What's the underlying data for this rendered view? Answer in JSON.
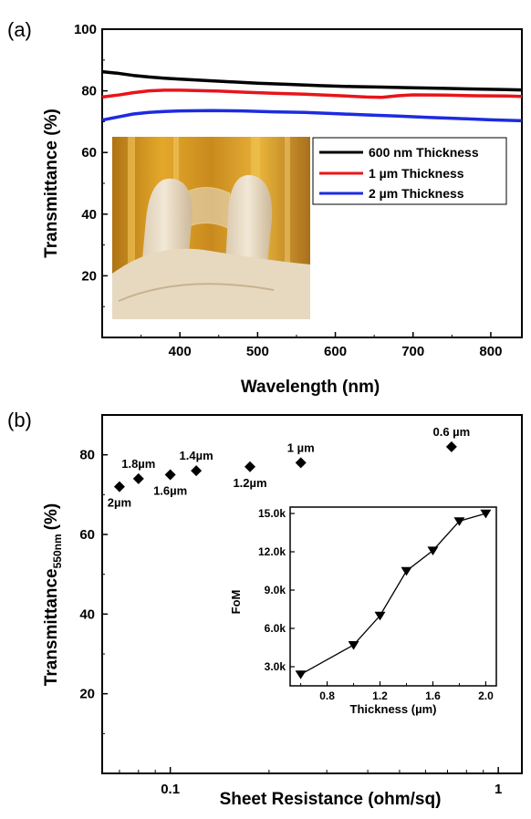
{
  "chart_data": [
    {
      "panel": "(a)",
      "type": "line",
      "xlabel": "Wavelength (nm)",
      "ylabel": "Transmittance (%)",
      "xlim": [
        300,
        840
      ],
      "ylim": [
        0,
        100
      ],
      "xticks": [
        "400",
        "500",
        "600",
        "700",
        "800"
      ],
      "yticks": [
        "20",
        "40",
        "60",
        "80",
        "100"
      ],
      "legend_position": "right, middle",
      "grid": false,
      "inset_photo": "photo of a transparent flexible film held between gloved fingers",
      "series": [
        {
          "name": "600 nm Thickness",
          "color": "#000000",
          "x": [
            300,
            320,
            340,
            360,
            380,
            400,
            430,
            460,
            500,
            540,
            580,
            620,
            660,
            700,
            740,
            780,
            820,
            840
          ],
          "y": [
            86.2,
            85.7,
            85.0,
            84.5,
            84.1,
            83.8,
            83.4,
            83.0,
            82.5,
            82.1,
            81.7,
            81.4,
            81.2,
            81.0,
            80.8,
            80.6,
            80.4,
            80.3
          ]
        },
        {
          "name": "1 µm Thickness",
          "color": "#e8141b",
          "x": [
            300,
            320,
            340,
            360,
            380,
            400,
            420,
            450,
            480,
            520,
            560,
            600,
            640,
            660,
            680,
            700,
            740,
            780,
            820,
            840
          ],
          "y": [
            78.0,
            78.6,
            79.4,
            80.0,
            80.2,
            80.2,
            80.1,
            79.9,
            79.6,
            79.2,
            78.9,
            78.5,
            78.0,
            77.9,
            78.4,
            78.7,
            78.6,
            78.4,
            78.3,
            78.2
          ]
        },
        {
          "name": "2 µm Thickness",
          "color": "#1d2be0",
          "x": [
            300,
            320,
            340,
            360,
            380,
            400,
            440,
            480,
            520,
            560,
            600,
            640,
            680,
            720,
            760,
            800,
            840
          ],
          "y": [
            70.5,
            71.5,
            72.5,
            73.0,
            73.3,
            73.5,
            73.6,
            73.5,
            73.2,
            73.0,
            72.6,
            72.2,
            71.8,
            71.4,
            71.0,
            70.6,
            70.3
          ]
        }
      ]
    },
    {
      "panel": "(b)",
      "type": "scatter",
      "xlabel": "Sheet Resistance (ohm/sq)",
      "ylabel_main": "Transmittance",
      "ylabel_sub": "550nm",
      "ylabel_unit": "(%)",
      "x_scale": "log",
      "xlim": [
        0.062,
        1.18
      ],
      "ylim": [
        0,
        90
      ],
      "xticks": [
        "0.1",
        "1"
      ],
      "yticks": [
        "20",
        "40",
        "60",
        "80"
      ],
      "grid": false,
      "points": [
        {
          "x": 0.07,
          "y": 72,
          "label": "2µm",
          "label_pos": "below"
        },
        {
          "x": 0.08,
          "y": 74,
          "label": "1.8µm",
          "label_pos": "above"
        },
        {
          "x": 0.1,
          "y": 75,
          "label": "1.6µm",
          "label_pos": "below"
        },
        {
          "x": 0.12,
          "y": 76,
          "label": "1.4µm",
          "label_pos": "above"
        },
        {
          "x": 0.175,
          "y": 77,
          "label": "1.2µm",
          "label_pos": "below"
        },
        {
          "x": 0.25,
          "y": 78,
          "label": "1 µm",
          "label_pos": "above"
        },
        {
          "x": 0.72,
          "y": 82,
          "label": "0.6 µm",
          "label_pos": "above"
        }
      ],
      "inset": {
        "type": "line",
        "xlabel": "Thickness (µm)",
        "ylabel": "FoM",
        "xlim": [
          0.52,
          2.08
        ],
        "ylim": [
          1500,
          15500
        ],
        "xticks": [
          "0.8",
          "1.2",
          "1.6",
          "2.0"
        ],
        "yticks": [
          "3.0k",
          "6.0k",
          "9.0k",
          "12.0k",
          "15.0k"
        ],
        "marker": "down-triangle",
        "x": [
          0.6,
          1.0,
          1.2,
          1.4,
          1.6,
          1.8,
          2.0
        ],
        "y": [
          2400,
          4700,
          7000,
          10500,
          12100,
          14400,
          15000
        ]
      }
    }
  ]
}
